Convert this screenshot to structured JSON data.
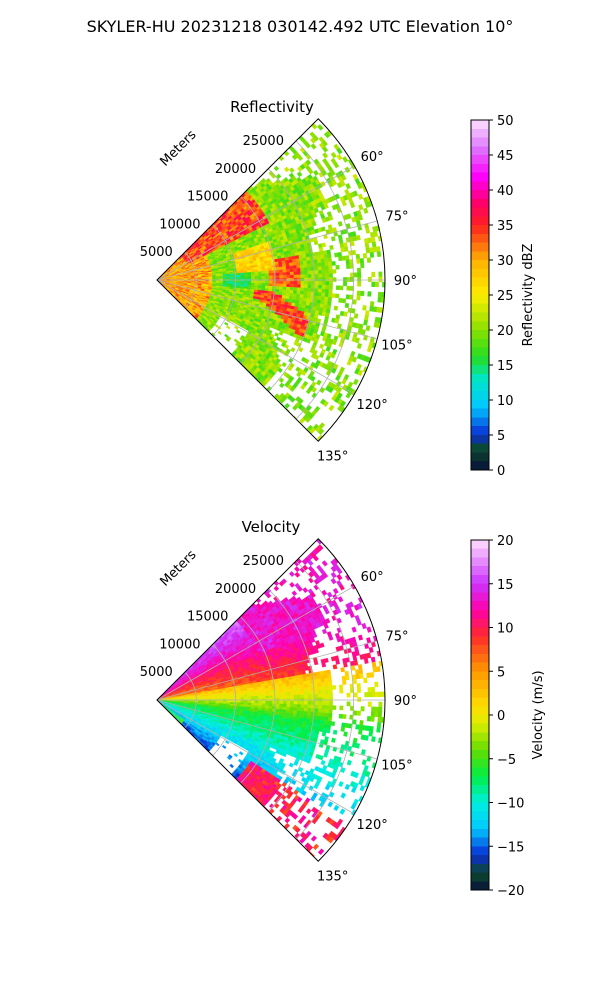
{
  "figure": {
    "suptitle": "SKYLER-HU  20231218  030142.492 UTC Elevation 10°"
  },
  "chart_data": [
    {
      "type": "heatmap",
      "title": "Reflectivity",
      "projection": "polar-sector",
      "radial_label": "Meters",
      "radial_ticks": [
        5000,
        10000,
        15000,
        20000,
        25000
      ],
      "radial_tick_labels": [
        "5000",
        "10000",
        "15000",
        "20000",
        "25000"
      ],
      "rlim": [
        0,
        29000
      ],
      "angle_ticks_deg": [
        60,
        75,
        90,
        105,
        120,
        135
      ],
      "angle_tick_labels": [
        "60°",
        "75°",
        "90°",
        "105°",
        "120°",
        "135°"
      ],
      "sector_deg": [
        45,
        135
      ],
      "grid": true,
      "colorbar": {
        "label": "Reflectivity dBZ",
        "range": [
          0,
          50
        ],
        "ticks": [
          0,
          5,
          10,
          15,
          20,
          25,
          30,
          35,
          40,
          45,
          50
        ],
        "tick_labels": [
          "0",
          "5",
          "10",
          "15",
          "20",
          "25",
          "30",
          "35",
          "40",
          "45",
          "50"
        ],
        "colormap": [
          {
            "v": 0,
            "c": "#08103a"
          },
          {
            "v": 3,
            "c": "#0c4a2c"
          },
          {
            "v": 5,
            "c": "#0a2bd6"
          },
          {
            "v": 9,
            "c": "#00c8ff"
          },
          {
            "v": 13,
            "c": "#00e6c8"
          },
          {
            "v": 16,
            "c": "#22dd22"
          },
          {
            "v": 20,
            "c": "#88e000"
          },
          {
            "v": 25,
            "c": "#ffee00"
          },
          {
            "v": 30,
            "c": "#ffb000"
          },
          {
            "v": 35,
            "c": "#ff2020"
          },
          {
            "v": 38,
            "c": "#ff0066"
          },
          {
            "v": 42,
            "c": "#ff00ff"
          },
          {
            "v": 46,
            "c": "#dd77ff"
          },
          {
            "v": 50,
            "c": "#ffe0ff"
          }
        ]
      }
    },
    {
      "type": "heatmap",
      "title": "Velocity",
      "projection": "polar-sector",
      "radial_label": "Meters",
      "radial_ticks": [
        5000,
        10000,
        15000,
        20000,
        25000
      ],
      "radial_tick_labels": [
        "5000",
        "10000",
        "15000",
        "20000",
        "25000"
      ],
      "rlim": [
        0,
        29000
      ],
      "angle_ticks_deg": [
        60,
        75,
        90,
        105,
        120,
        135
      ],
      "angle_tick_labels": [
        "60°",
        "75°",
        "90°",
        "105°",
        "120°",
        "135°"
      ],
      "sector_deg": [
        45,
        135
      ],
      "grid": true,
      "colorbar": {
        "label": "Velocity (m/s)",
        "range": [
          -20,
          20
        ],
        "ticks": [
          -20,
          -15,
          -10,
          -5,
          0,
          5,
          10,
          15,
          20
        ],
        "tick_labels": [
          "−20",
          "−15",
          "−10",
          "−5",
          "0",
          "5",
          "10",
          "15",
          "20"
        ],
        "colormap": [
          {
            "v": -20,
            "c": "#08103a"
          },
          {
            "v": -18,
            "c": "#0c4a2c"
          },
          {
            "v": -16,
            "c": "#0a2bd6"
          },
          {
            "v": -13,
            "c": "#00c8ff"
          },
          {
            "v": -10,
            "c": "#00f0e0"
          },
          {
            "v": -7,
            "c": "#00ee44"
          },
          {
            "v": -4,
            "c": "#66dd00"
          },
          {
            "v": -1,
            "c": "#ddee00"
          },
          {
            "v": 1,
            "c": "#ffdd00"
          },
          {
            "v": 5,
            "c": "#ff9900"
          },
          {
            "v": 9,
            "c": "#ff2a2a"
          },
          {
            "v": 12,
            "c": "#ff00aa"
          },
          {
            "v": 15,
            "c": "#cc33ff"
          },
          {
            "v": 20,
            "c": "#ffe0ff"
          }
        ]
      }
    }
  ]
}
